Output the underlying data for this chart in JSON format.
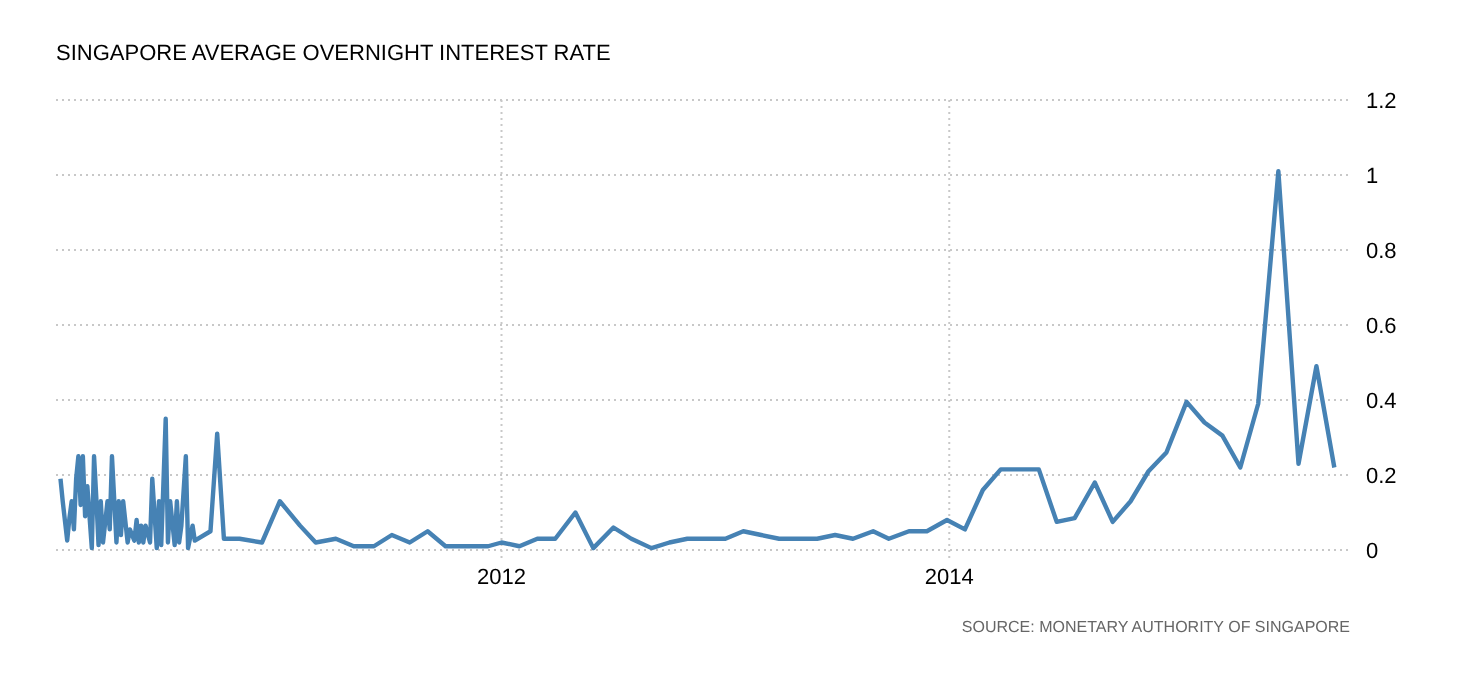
{
  "chart_data": {
    "type": "line",
    "title": "SINGAPORE AVERAGE OVERNIGHT INTEREST RATE",
    "annotations": [
      "SOURCE: MONETARY AUTHORITY OF SINGAPORE"
    ],
    "xlim": [
      2010.01,
      2015.79
    ],
    "xticks": [
      2012,
      2014
    ],
    "ylim": [
      0,
      1.2
    ],
    "yticks": [
      0,
      0.2,
      0.4,
      0.6,
      0.8,
      1,
      1.2
    ],
    "grid": true,
    "line_style": "solid",
    "marker": "none",
    "series": [
      {
        "color": "#4682b4",
        "x": [
          2010.03,
          2010.04,
          2010.06,
          2010.07,
          2010.08,
          2010.09,
          2010.1,
          2010.11,
          2010.12,
          2010.13,
          2010.14,
          2010.15,
          2010.17,
          2010.18,
          2010.19,
          2010.2,
          2010.21,
          2010.22,
          2010.24,
          2010.25,
          2010.26,
          2010.28,
          2010.29,
          2010.3,
          2010.31,
          2010.33,
          2010.34,
          2010.36,
          2010.37,
          2010.38,
          2010.39,
          2010.4,
          2010.41,
          2010.43,
          2010.44,
          2010.46,
          2010.47,
          2010.48,
          2010.5,
          2010.51,
          2010.52,
          2010.54,
          2010.55,
          2010.56,
          2010.57,
          2010.59,
          2010.6,
          2010.62,
          2010.63,
          2010.7,
          2010.73,
          2010.76,
          2010.83,
          2010.93,
          2011.01,
          2011.1,
          2011.17,
          2011.26,
          2011.34,
          2011.43,
          2011.51,
          2011.59,
          2011.67,
          2011.75,
          2011.86,
          2011.94,
          2012.0,
          2012.08,
          2012.16,
          2012.24,
          2012.33,
          2012.41,
          2012.5,
          2012.58,
          2012.67,
          2012.75,
          2012.83,
          2012.92,
          2013.0,
          2013.08,
          2013.16,
          2013.24,
          2013.33,
          2013.41,
          2013.49,
          2013.57,
          2013.66,
          2013.73,
          2013.82,
          2013.9,
          2013.99,
          2014.07,
          2014.15,
          2014.23,
          2014.32,
          2014.4,
          2014.48,
          2014.56,
          2014.65,
          2014.73,
          2014.81,
          2014.89,
          2014.97,
          2015.06,
          2015.14,
          2015.22,
          2015.3,
          2015.38,
          2015.47,
          2015.56,
          2015.64,
          2015.72
        ],
        "values": [
          0.19,
          0.13,
          0.025,
          0.085,
          0.13,
          0.055,
          0.19,
          0.25,
          0.12,
          0.25,
          0.09,
          0.17,
          0.005,
          0.25,
          0.14,
          0.013,
          0.13,
          0.02,
          0.13,
          0.055,
          0.25,
          0.02,
          0.13,
          0.04,
          0.13,
          0.02,
          0.055,
          0.025,
          0.08,
          0.02,
          0.065,
          0.02,
          0.065,
          0.02,
          0.19,
          0.005,
          0.13,
          0.013,
          0.35,
          0.02,
          0.13,
          0.013,
          0.13,
          0.02,
          0.065,
          0.25,
          0.005,
          0.065,
          0.025,
          0.05,
          0.31,
          0.03,
          0.03,
          0.02,
          0.13,
          0.065,
          0.02,
          0.03,
          0.01,
          0.01,
          0.04,
          0.02,
          0.05,
          0.01,
          0.01,
          0.01,
          0.02,
          0.01,
          0.03,
          0.03,
          0.1,
          0.005,
          0.06,
          0.03,
          0.005,
          0.02,
          0.03,
          0.03,
          0.03,
          0.05,
          0.04,
          0.03,
          0.03,
          0.03,
          0.04,
          0.03,
          0.05,
          0.03,
          0.05,
          0.05,
          0.08,
          0.055,
          0.16,
          0.215,
          0.215,
          0.215,
          0.075,
          0.085,
          0.18,
          0.075,
          0.13,
          0.21,
          0.26,
          0.395,
          0.34,
          0.305,
          0.22,
          0.39,
          1.01,
          0.23,
          0.49,
          0.22
        ]
      }
    ]
  }
}
